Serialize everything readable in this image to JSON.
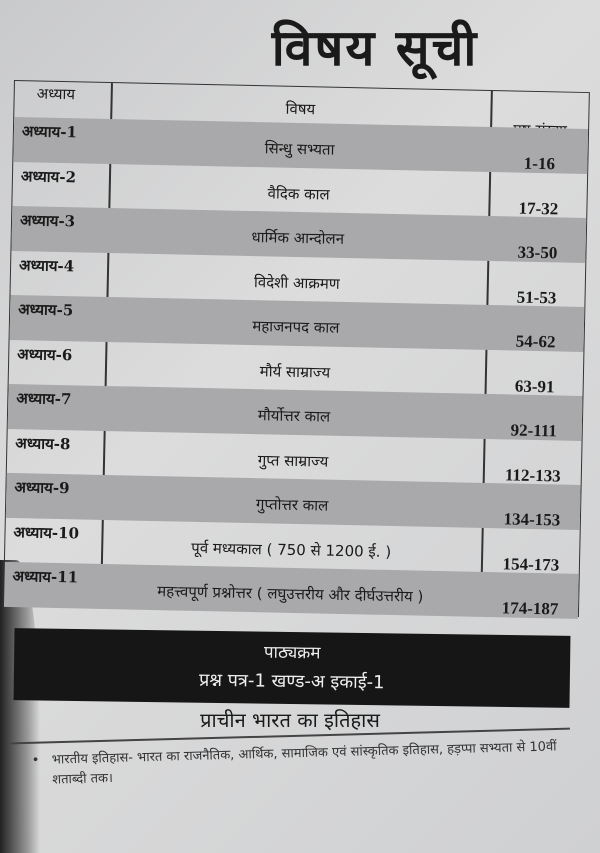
{
  "title": "विषय सूची",
  "table": {
    "headers": {
      "chapter": "अध्याय",
      "subject": "विषय",
      "pages": "पृष्ठ संख्या"
    },
    "rows": [
      {
        "chapter": "अध्याय-1",
        "subject": "सिन्धु सभ्यता",
        "pages": "1-16"
      },
      {
        "chapter": "अध्याय-2",
        "subject": "वैदिक काल",
        "pages": "17-32"
      },
      {
        "chapter": "अध्याय-3",
        "subject": "धार्मिक आन्दोलन",
        "pages": "33-50"
      },
      {
        "chapter": "अध्याय-4",
        "subject": "विदेशी आक्रमण",
        "pages": "51-53"
      },
      {
        "chapter": "अध्याय-5",
        "subject": "महाजनपद काल",
        "pages": "54-62"
      },
      {
        "chapter": "अध्याय-6",
        "subject": "मौर्य साम्राज्य",
        "pages": "63-91"
      },
      {
        "chapter": "अध्याय-7",
        "subject": "मौर्योत्तर काल",
        "pages": "92-111"
      },
      {
        "chapter": "अध्याय-8",
        "subject": "गुप्त साम्राज्य",
        "pages": "112-133"
      },
      {
        "chapter": "अध्याय-9",
        "subject": "गुप्तोत्तर काल",
        "pages": "134-153"
      },
      {
        "chapter": "अध्याय-10",
        "subject": "पूर्व मध्यकाल ( 750 से 1200 ई. )",
        "pages": "154-173"
      },
      {
        "chapter": "अध्याय-11",
        "subject": "महत्त्वपूर्ण प्रश्नोत्तर ( लघुउत्तरीय और दीर्घउत्तरीय )",
        "pages": "174-187"
      }
    ]
  },
  "syllabus": {
    "heading": "पाठ्यक्रम",
    "paper": "प्रश्न पत्र-1 खण्ड-अ इकाई-1",
    "subtitle": "प्राचीन भारत का इतिहास",
    "bullet": "भारतीय इतिहास- भारत का राजनैतिक, आर्थिक, सामाजिक एवं सांस्कृतिक इतिहास, हड़प्पा सभ्यता से 10वीं शताब्दी तक।"
  }
}
